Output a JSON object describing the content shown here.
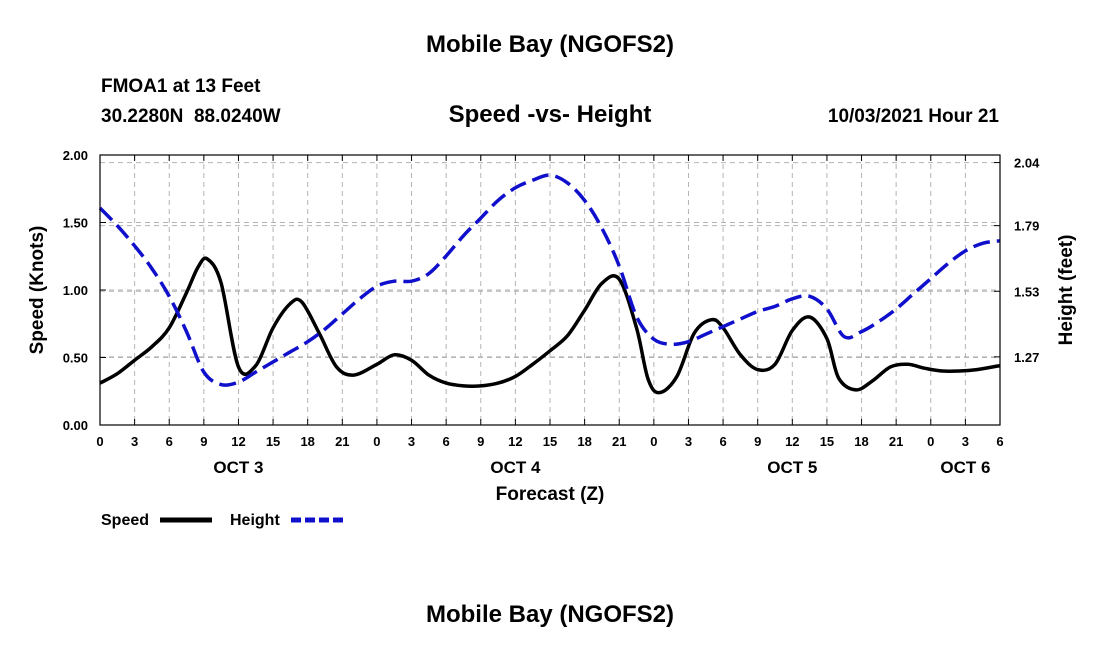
{
  "header": {
    "title": "Mobile Bay (NGOFS2)",
    "station": "FMOA1 at 13 Feet",
    "coords": "30.2280N  88.0240W",
    "chart_title": "Speed -vs- Height",
    "datetime": "10/03/2021 Hour 21"
  },
  "footer": {
    "title": "Mobile Bay (NGOFS2)"
  },
  "colors": {
    "speed": "#000000",
    "height": "#1010cc",
    "grid": "#b4b4b4"
  },
  "chart_data": {
    "type": "line",
    "title": "Speed -vs- Height",
    "xlabel": "Forecast (Z)",
    "ylabel": "Speed (Knots)",
    "y2label": "Height (feet)",
    "xlim": [
      0,
      78
    ],
    "ylim": [
      0,
      2.0
    ],
    "y2lim": [
      1.0,
      2.07
    ],
    "x_ticks": [
      0,
      3,
      6,
      9,
      12,
      15,
      18,
      21,
      24,
      27,
      30,
      33,
      36,
      39,
      42,
      45,
      48,
      51,
      54,
      57,
      60,
      63,
      66,
      69,
      72,
      75,
      78
    ],
    "x_tick_labels": [
      "0",
      "3",
      "6",
      "9",
      "12",
      "15",
      "18",
      "21",
      "0",
      "3",
      "6",
      "9",
      "12",
      "15",
      "18",
      "21",
      "0",
      "3",
      "6",
      "9",
      "12",
      "15",
      "18",
      "21",
      "0",
      "3",
      "6"
    ],
    "day_labels": [
      {
        "label": "OCT 3",
        "x": 12
      },
      {
        "label": "OCT 4",
        "x": 36
      },
      {
        "label": "OCT 5",
        "x": 60
      },
      {
        "label": "OCT 6",
        "x": 75
      }
    ],
    "y_ticks": [
      0.0,
      0.5,
      1.0,
      1.5,
      2.0
    ],
    "y_tick_labels": [
      "0.00",
      "0.50",
      "1.00",
      "1.50",
      "2.00"
    ],
    "y2_ticks": [
      1.27,
      1.53,
      1.79,
      2.04
    ],
    "y2_tick_labels": [
      "1.27",
      "1.53",
      "1.79",
      "2.04"
    ],
    "grid": true,
    "legend": "bottom-left",
    "series": [
      {
        "name": "Speed",
        "axis": "left",
        "style": "solid",
        "x": [
          0,
          1.5,
          3,
          4.5,
          6,
          7.5,
          8.5,
          9.3,
          10.5,
          12,
          13.5,
          15,
          16.5,
          17.5,
          19,
          20.5,
          22,
          24,
          25.5,
          27,
          28.5,
          30,
          31.5,
          33,
          34.5,
          36,
          37.5,
          39,
          40.5,
          42,
          43.5,
          45,
          46.5,
          47.5,
          48.5,
          50,
          51.5,
          53,
          54,
          55.5,
          57,
          58.5,
          60,
          61.5,
          63,
          64,
          65.5,
          67,
          68.5,
          70,
          71.5,
          73,
          74.5,
          76,
          78
        ],
        "y": [
          0.31,
          0.38,
          0.48,
          0.58,
          0.72,
          0.98,
          1.17,
          1.23,
          1.05,
          0.43,
          0.44,
          0.72,
          0.9,
          0.91,
          0.68,
          0.43,
          0.37,
          0.45,
          0.52,
          0.48,
          0.37,
          0.31,
          0.29,
          0.29,
          0.31,
          0.36,
          0.45,
          0.55,
          0.66,
          0.85,
          1.05,
          1.08,
          0.72,
          0.34,
          0.24,
          0.36,
          0.68,
          0.78,
          0.72,
          0.52,
          0.41,
          0.45,
          0.7,
          0.8,
          0.64,
          0.35,
          0.26,
          0.33,
          0.43,
          0.45,
          0.42,
          0.4,
          0.4,
          0.41,
          0.44
        ]
      },
      {
        "name": "Height",
        "axis": "right",
        "style": "dashed",
        "x": [
          0,
          1.5,
          3,
          4.5,
          6,
          7.5,
          9,
          10.5,
          12,
          13.5,
          15,
          16.5,
          18,
          19.5,
          21,
          22.5,
          24,
          25.5,
          27,
          28.5,
          30,
          31.5,
          33,
          34.5,
          36,
          37.5,
          39,
          40.5,
          42,
          43.5,
          45,
          46.5,
          48,
          49.5,
          51,
          52.5,
          54,
          55.5,
          57,
          58.5,
          60,
          61.5,
          63,
          64.5,
          66,
          67.5,
          69,
          70.5,
          72,
          73.5,
          75,
          76.5,
          78
        ],
        "y": [
          1.86,
          1.79,
          1.71,
          1.62,
          1.51,
          1.37,
          1.21,
          1.16,
          1.17,
          1.21,
          1.25,
          1.29,
          1.33,
          1.38,
          1.44,
          1.5,
          1.55,
          1.57,
          1.57,
          1.6,
          1.67,
          1.75,
          1.82,
          1.89,
          1.94,
          1.97,
          1.99,
          1.96,
          1.89,
          1.78,
          1.63,
          1.43,
          1.34,
          1.32,
          1.33,
          1.36,
          1.39,
          1.42,
          1.45,
          1.47,
          1.5,
          1.51,
          1.46,
          1.35,
          1.37,
          1.41,
          1.46,
          1.52,
          1.58,
          1.64,
          1.69,
          1.72,
          1.73
        ]
      }
    ]
  }
}
